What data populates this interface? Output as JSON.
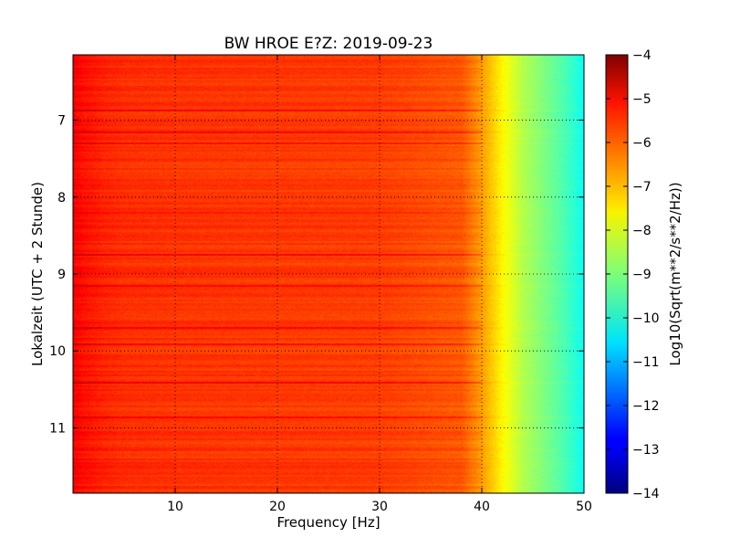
{
  "chart_data": {
    "type": "heatmap",
    "title": "BW HROE E?Z: 2019-09-23",
    "xlabel": "Frequency [Hz]",
    "ylabel": "Lokalzeit (UTC + 2 Stunde)",
    "xlim": [
      0,
      50
    ],
    "ylim": [
      11.85,
      6.15
    ],
    "x_ticks": [
      10,
      20,
      30,
      40,
      50
    ],
    "x_tick_labels": [
      "10",
      "20",
      "30",
      "40",
      "50"
    ],
    "y_ticks": [
      7,
      8,
      9,
      10,
      11
    ],
    "y_tick_labels": [
      "7",
      "8",
      "9",
      "10",
      "11"
    ],
    "grid": true,
    "colormap": "jet",
    "colorbar": {
      "label": "Log10(Sqrt(m**2/s**2/Hz))",
      "range": [
        -14,
        -4
      ],
      "ticks": [
        -4,
        -5,
        -6,
        -7,
        -8,
        -9,
        -10,
        -11,
        -12,
        -13,
        -14
      ],
      "tick_labels": [
        "−4",
        "−5",
        "−6",
        "−7",
        "−8",
        "−9",
        "−10",
        "−11",
        "−12",
        "−13",
        "−14"
      ]
    },
    "frequency_profile_hz": [
      0,
      1,
      3,
      5,
      10,
      20,
      30,
      38,
      40,
      42,
      44,
      46,
      48,
      49.5,
      50
    ],
    "value_profile": [
      -5.2,
      -5.4,
      -5.6,
      -5.7,
      -5.75,
      -5.8,
      -5.85,
      -6.1,
      -6.8,
      -7.7,
      -8.5,
      -9.0,
      -9.5,
      -10.0,
      -10.2
    ],
    "notable_time_bands": [
      6.87,
      7.15,
      7.3,
      8.2,
      8.75,
      9.15,
      9.7,
      9.9,
      10.4,
      10.85
    ]
  }
}
